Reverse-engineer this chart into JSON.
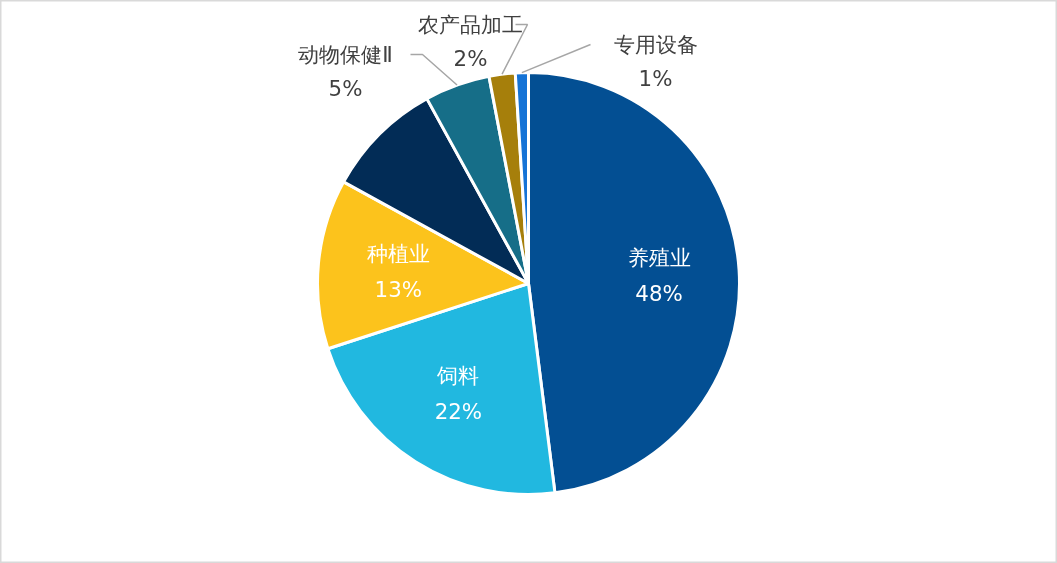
{
  "chart_data": {
    "type": "pie",
    "categories": [
      "养殖业",
      "饲料",
      "种植业",
      null,
      "动物保健Ⅱ",
      "农产品加工",
      "专用设备"
    ],
    "values": [
      48,
      22,
      13,
      9,
      5,
      2,
      1
    ],
    "value_labels": [
      "48%",
      "22%",
      "13%",
      null,
      "5%",
      "2%",
      "1%"
    ],
    "colors": [
      "#034f93",
      "#21b8e0",
      "#fcc31c",
      "#022c56",
      "#166e88",
      "#a67f0b",
      "#1573d6"
    ]
  }
}
